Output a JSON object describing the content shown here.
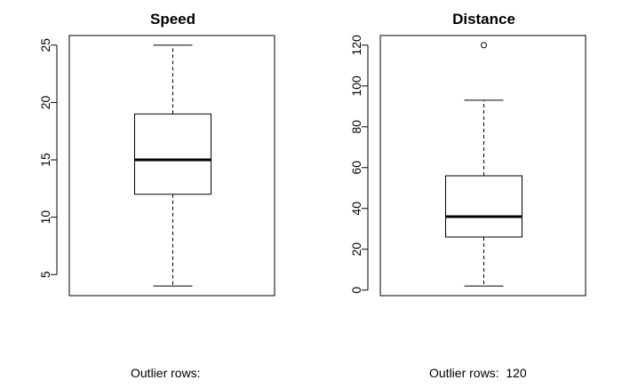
{
  "chart_data": [
    {
      "type": "boxplot",
      "title": "Speed",
      "xlabel": "",
      "ylabel": "",
      "ylim": [
        3.16,
        25.84
      ],
      "yticks": [
        5,
        10,
        15,
        20,
        25
      ],
      "grid": false,
      "box": {
        "min": 4,
        "q1": 12,
        "median": 15,
        "q3": 19,
        "max": 25
      },
      "outliers": [],
      "caption_label": "Outlier rows:",
      "caption_value": ""
    },
    {
      "type": "boxplot",
      "title": "Distance",
      "xlabel": "",
      "ylabel": "",
      "ylim": [
        -2.72,
        124.72
      ],
      "yticks": [
        0,
        20,
        40,
        60,
        80,
        100,
        120
      ],
      "grid": false,
      "box": {
        "min": 2,
        "q1": 26,
        "median": 36,
        "q3": 56,
        "max": 93
      },
      "outliers": [
        120
      ],
      "caption_label": "Outlier rows:",
      "caption_value": "120"
    }
  ],
  "colors": {
    "median": "#000000",
    "box": "#000000",
    "background": "#ffffff"
  }
}
